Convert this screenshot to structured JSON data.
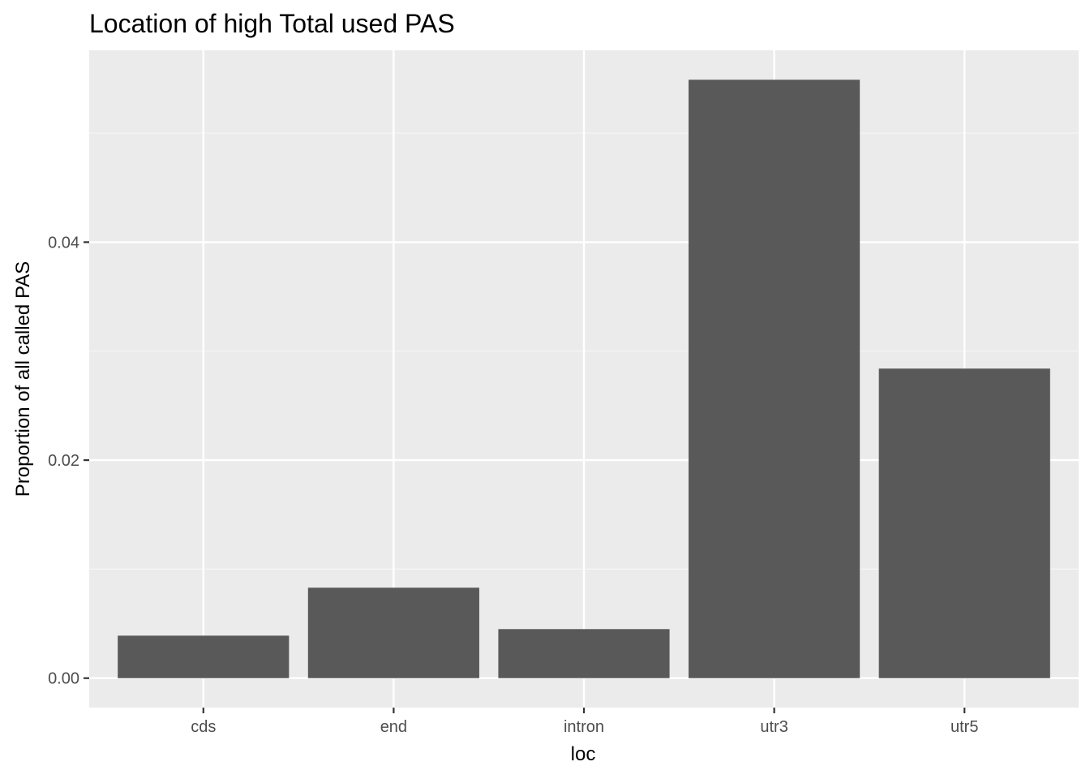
{
  "chart_data": {
    "type": "bar",
    "title": "Location of high Total used PAS",
    "xlabel": "loc",
    "ylabel": "Proportion of all called PAS",
    "categories": [
      "cds",
      "end",
      "intron",
      "utr3",
      "utr5"
    ],
    "values": [
      0.0039,
      0.0083,
      0.0045,
      0.0549,
      0.0284
    ],
    "ylim": [
      -0.0027,
      0.0576
    ],
    "yticks": [
      0.0,
      0.02,
      0.04
    ],
    "ytick_labels": [
      "0.00",
      "0.02",
      "0.04"
    ],
    "grid": true,
    "legend": "none",
    "colors": {
      "panel_background": "#ebebeb",
      "grid_major": "#ffffff",
      "grid_minor": "#f5f5f5",
      "bar_fill": "#595959",
      "tick_text": "#4d4d4d",
      "tick_mark": "#333333"
    }
  }
}
